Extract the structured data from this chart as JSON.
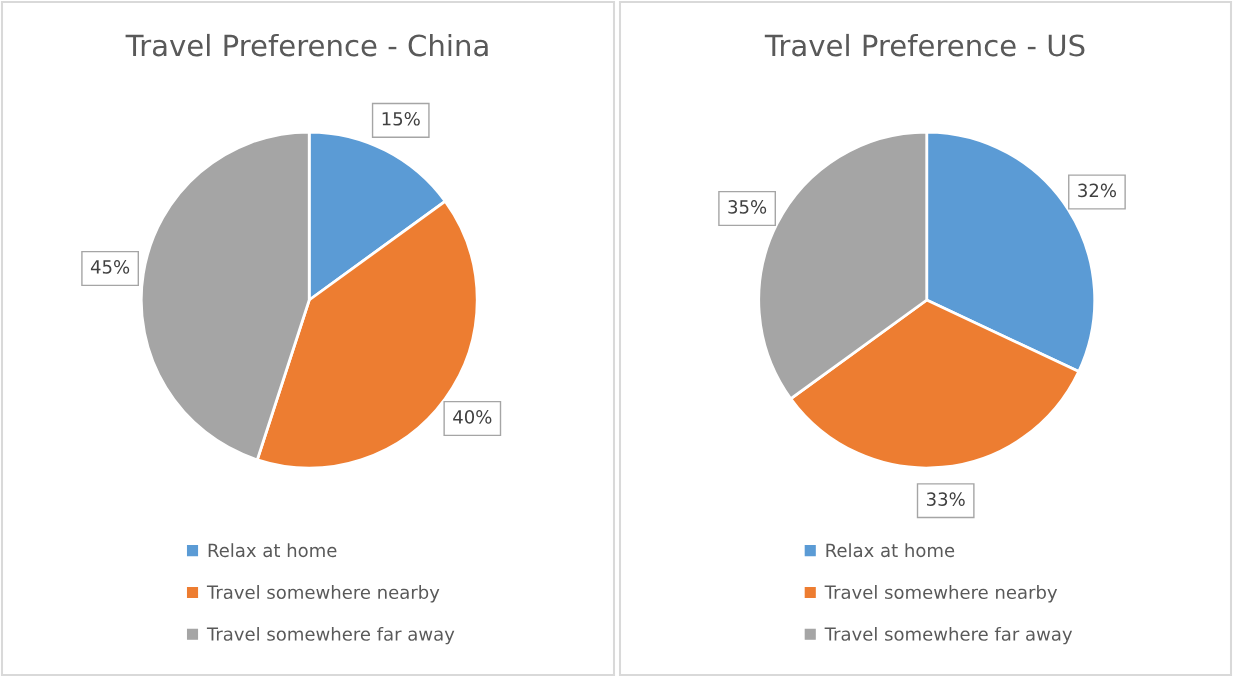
{
  "chart_data": [
    {
      "type": "pie",
      "title": "Travel Preference - China",
      "categories": [
        "Relax at home",
        "Travel somewhere nearby",
        "Travel somewhere far away"
      ],
      "values": [
        15,
        40,
        45
      ],
      "value_labels": [
        "15%",
        "40%",
        "45%"
      ],
      "colors": [
        "#5b9bd5",
        "#ed7d31",
        "#a5a5a5"
      ],
      "legend": "bottom"
    },
    {
      "type": "pie",
      "title": "Travel Preference - US",
      "categories": [
        "Relax at home",
        "Travel somewhere nearby",
        "Travel somewhere far away"
      ],
      "values": [
        32,
        33,
        35
      ],
      "value_labels": [
        "32%",
        "33%",
        "35%"
      ],
      "colors": [
        "#5b9bd5",
        "#ed7d31",
        "#a5a5a5"
      ],
      "legend": "bottom"
    }
  ]
}
